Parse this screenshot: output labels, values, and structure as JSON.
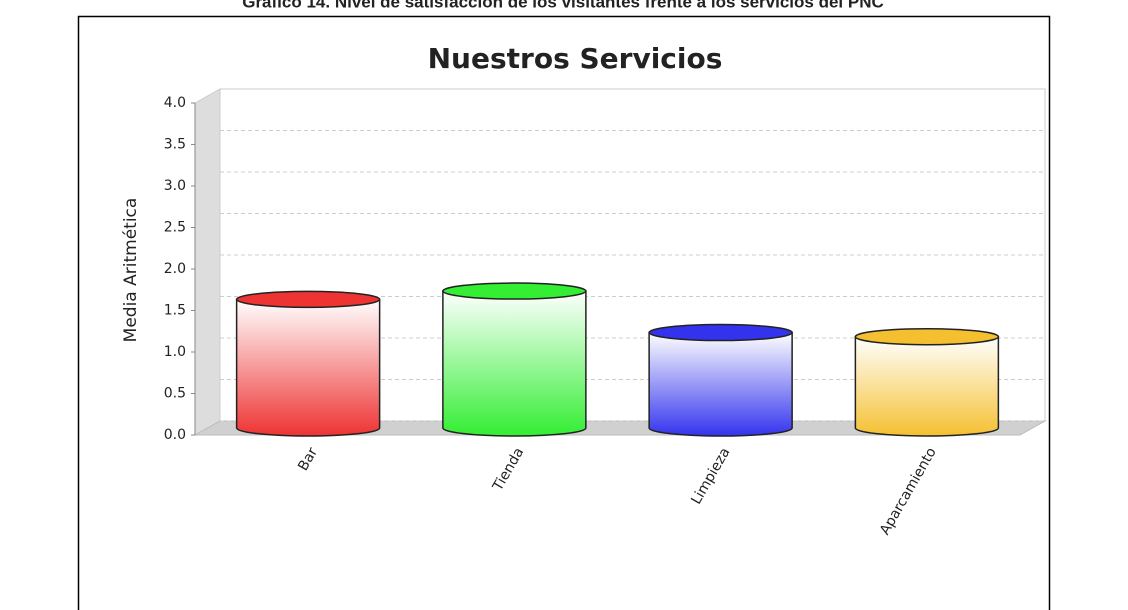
{
  "caption": "Gráfico 14. Nivel de satisfacción de los visitantes frente a los servicios del PNC",
  "chart_data": {
    "type": "cylinder",
    "title": "Nuestros Servicios",
    "y_label": "Media Aritmética",
    "categories": [
      "Bar",
      "Tienda",
      "Limpieza",
      "Aparcamiento"
    ],
    "values": [
      1.55,
      1.65,
      1.15,
      1.1
    ],
    "colors": [
      "#ee3333",
      "#33ee33",
      "#3333ee",
      "#f5c030"
    ],
    "ylim": [
      0,
      4
    ],
    "yticks": [
      {
        "value": 0,
        "label": "0.0"
      },
      {
        "value": 0.5,
        "label": "0.5"
      },
      {
        "value": 1,
        "label": "1.0"
      },
      {
        "value": 1.5,
        "label": "1.5"
      },
      {
        "value": 2,
        "label": "2.0"
      },
      {
        "value": 2.5,
        "label": "2.5"
      },
      {
        "value": 3,
        "label": "3.0"
      },
      {
        "value": 3.5,
        "label": "3.5"
      },
      {
        "value": 4,
        "label": "4.0"
      }
    ],
    "grid": true
  }
}
